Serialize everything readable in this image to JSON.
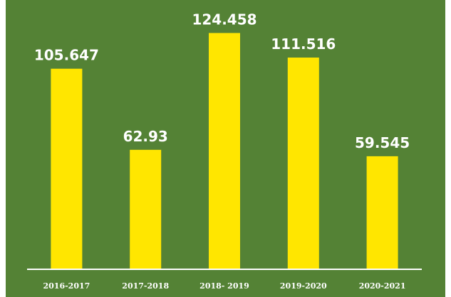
{
  "colors": {
    "background": "#548235",
    "bar": "#FFE600",
    "text": "#FFFFFF",
    "axis": "#FFFFFF"
  },
  "chart_data": {
    "type": "bar",
    "categories": [
      "2016-2017",
      "2017-2018",
      "2018- 2019",
      "2019-2020",
      "2020-2021"
    ],
    "values": [
      105.647,
      62.93,
      124.458,
      111.516,
      59.545
    ],
    "data_labels": [
      "105.647",
      "62.93",
      "124.458",
      "111.516",
      "59.545"
    ],
    "ylim": [
      0,
      125
    ],
    "grid": false,
    "legend": "none"
  }
}
